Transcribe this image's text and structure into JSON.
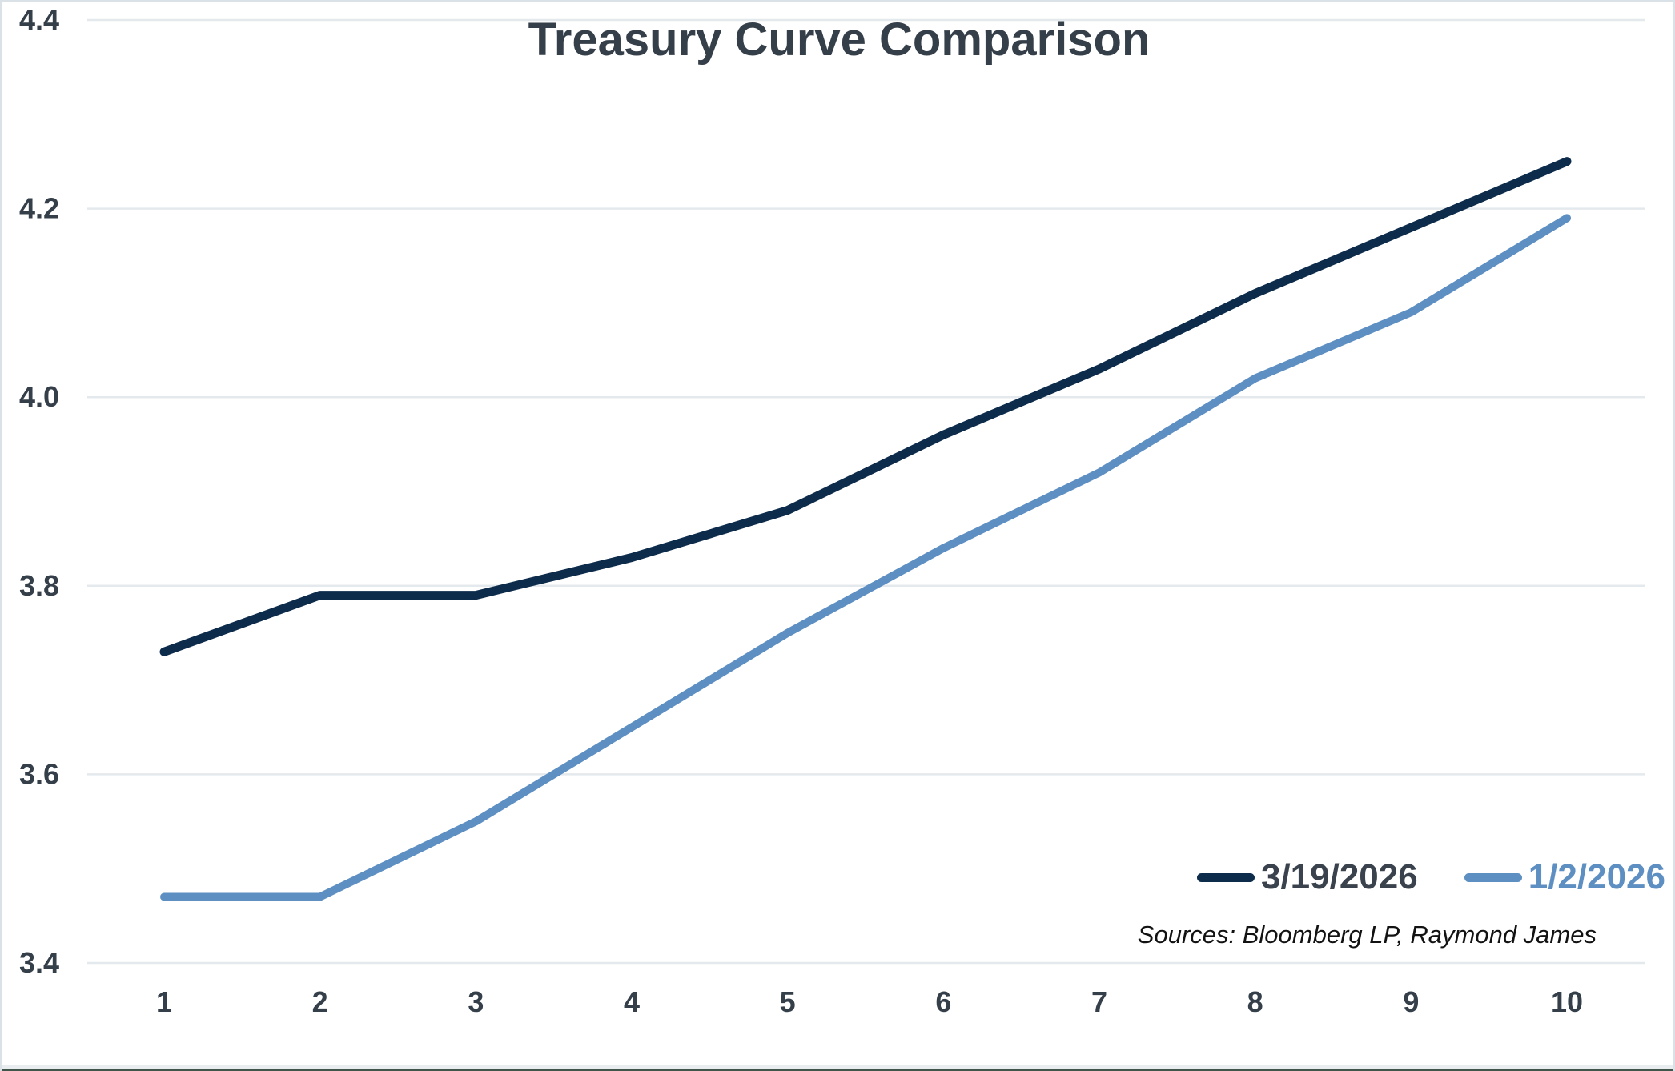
{
  "chart_data": {
    "type": "line",
    "title": "Treasury Curve Comparison",
    "x": [
      1,
      2,
      3,
      4,
      5,
      6,
      7,
      8,
      9,
      10
    ],
    "xticks": [
      1,
      2,
      3,
      4,
      5,
      6,
      7,
      8,
      9,
      10
    ],
    "yticks": [
      3.4,
      3.6,
      3.8,
      4.0,
      4.2,
      4.4
    ],
    "ylim": [
      3.4,
      4.4
    ],
    "grid": "horizontal",
    "legend_position": "bottom-right",
    "series": [
      {
        "name": "3/19/2026",
        "color": "#0d2b4b",
        "label_color": "#3a434d",
        "values": [
          3.73,
          3.79,
          3.79,
          3.83,
          3.88,
          3.96,
          4.03,
          4.11,
          4.18,
          4.25
        ]
      },
      {
        "name": "1/2/2026",
        "color": "#5e8fc2",
        "label_color": "#5e8fc2",
        "values": [
          3.47,
          3.47,
          3.55,
          3.65,
          3.75,
          3.84,
          3.92,
          4.02,
          4.09,
          4.19
        ]
      }
    ],
    "sources_note": "Sources: Bloomberg LP, Raymond James"
  },
  "colors": {
    "grid": "#e4e9ed",
    "axis_label": "#353f4a",
    "frame_border": "#dbe2e7",
    "bottom_edge": "#40564b",
    "background": "#ffffff"
  }
}
